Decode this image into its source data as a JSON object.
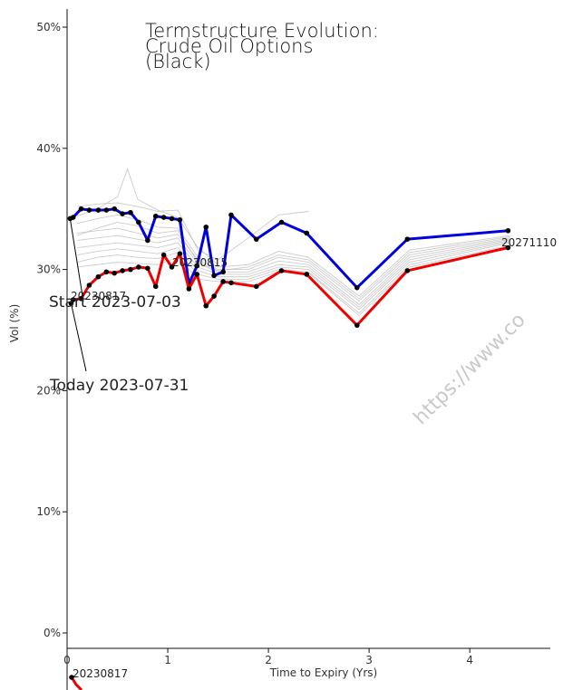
{
  "chart_data": {
    "type": "line",
    "title": [
      "Termstructure Evolution:",
      "Crude Oil Options",
      "(Black)"
    ],
    "xlabel": "Time to Expiry (Yrs)",
    "ylabel": "Vol (%)",
    "xlim": [
      0,
      4.8
    ],
    "ylim": [
      0,
      50
    ],
    "xticks": [
      0,
      1,
      2,
      3,
      4
    ],
    "yticks": [
      0,
      10,
      20,
      30,
      40,
      50
    ],
    "ytick_labels": [
      "0%",
      "10%",
      "20%",
      "30%",
      "40%",
      "50%"
    ],
    "grid": false,
    "series": [
      {
        "role": "start",
        "color": "#0000dd",
        "x": [
          0.03,
          0.06,
          0.14,
          0.22,
          0.31,
          0.39,
          0.47,
          0.55,
          0.63,
          0.71,
          0.8,
          0.88,
          0.96,
          1.04,
          1.12,
          1.21,
          1.29,
          1.38,
          1.46,
          1.55,
          1.63,
          1.88,
          2.13,
          2.38,
          2.88,
          3.38,
          4.38
        ],
        "y": [
          34.2,
          34.3,
          35.0,
          34.9,
          34.9,
          34.9,
          35.0,
          34.6,
          34.7,
          33.9,
          32.4,
          34.4,
          34.3,
          34.2,
          34.1,
          28.8,
          30.3,
          33.5,
          29.5,
          29.8,
          34.5,
          32.5,
          33.9,
          33.0,
          28.5,
          32.5,
          33.2
        ]
      },
      {
        "role": "today",
        "color": "#ee0000",
        "x": [
          0.04,
          0.06,
          0.14,
          0.22,
          0.31,
          0.39,
          0.47,
          0.55,
          0.63,
          0.71,
          0.8,
          0.88,
          0.96,
          1.04,
          1.12,
          1.21,
          1.29,
          1.38,
          1.46,
          1.55,
          1.63,
          1.88,
          2.13,
          2.38,
          2.88,
          3.38,
          4.38
        ],
        "y": [
          27.2,
          27.5,
          27.6,
          28.7,
          29.4,
          29.8,
          29.7,
          29.9,
          30.0,
          30.2,
          30.1,
          28.6,
          31.2,
          30.2,
          31.3,
          28.4,
          29.6,
          27.0,
          27.8,
          29.0,
          28.9,
          28.6,
          29.9,
          29.6,
          25.4,
          29.9,
          31.8
        ]
      }
    ],
    "history_color": "#bbbbbb",
    "history_series": [
      {
        "x": [
          0.1,
          0.3,
          0.5,
          0.7,
          0.9,
          1.1,
          1.3,
          1.5,
          1.8,
          2.1,
          2.4,
          2.9,
          3.4,
          4.4
        ],
        "y": [
          33.8,
          34.2,
          34.5,
          34.1,
          33.5,
          33.4,
          31.0,
          30.2,
          30.4,
          31.5,
          31.0,
          27.8,
          31.6,
          32.8
        ]
      },
      {
        "x": [
          0.1,
          0.3,
          0.5,
          0.7,
          0.9,
          1.1,
          1.3,
          1.5,
          1.8,
          2.1,
          2.4,
          2.9,
          3.4,
          4.4
        ],
        "y": [
          33.0,
          33.2,
          33.4,
          33.0,
          32.6,
          32.9,
          30.8,
          30.0,
          30.0,
          31.0,
          30.6,
          27.4,
          31.2,
          32.6
        ]
      },
      {
        "x": [
          0.1,
          0.3,
          0.5,
          0.7,
          0.9,
          1.1,
          1.3,
          1.5,
          1.8,
          2.1,
          2.4,
          2.9,
          3.4,
          4.4
        ],
        "y": [
          32.4,
          32.6,
          32.8,
          32.5,
          32.2,
          32.6,
          30.5,
          29.8,
          29.8,
          30.7,
          30.4,
          27.1,
          31.0,
          32.5
        ]
      },
      {
        "x": [
          0.1,
          0.3,
          0.5,
          0.7,
          0.9,
          1.1,
          1.3,
          1.5,
          1.8,
          2.1,
          2.4,
          2.9,
          3.4,
          4.4
        ],
        "y": [
          31.8,
          32.0,
          32.2,
          32.0,
          31.8,
          32.2,
          30.2,
          29.6,
          29.6,
          30.4,
          30.2,
          26.9,
          30.8,
          32.4
        ]
      },
      {
        "x": [
          0.1,
          0.3,
          0.5,
          0.7,
          0.9,
          1.1,
          1.3,
          1.5,
          1.8,
          2.1,
          2.4,
          2.9,
          3.4,
          4.4
        ],
        "y": [
          31.2,
          31.5,
          31.7,
          31.5,
          31.3,
          31.8,
          29.9,
          29.4,
          29.4,
          30.2,
          30.0,
          26.7,
          30.6,
          32.3
        ]
      },
      {
        "x": [
          0.1,
          0.3,
          0.5,
          0.7,
          0.9,
          1.1,
          1.3,
          1.5,
          1.8,
          2.1,
          2.4,
          2.9,
          3.4,
          4.4
        ],
        "y": [
          30.6,
          31.0,
          31.2,
          31.0,
          30.9,
          31.4,
          29.6,
          29.2,
          29.2,
          30.0,
          29.8,
          26.4,
          30.4,
          32.2
        ]
      },
      {
        "x": [
          0.1,
          0.3,
          0.5,
          0.6,
          0.7,
          0.9,
          1.1,
          1.3,
          1.5
        ],
        "y": [
          34.4,
          35.0,
          36.0,
          38.3,
          35.8,
          34.9,
          34.3,
          31.8,
          30.4
        ]
      },
      {
        "x": [
          0.1,
          0.3,
          0.5,
          0.7,
          0.9,
          1.1,
          1.3,
          1.5,
          1.8,
          2.1,
          2.4
        ],
        "y": [
          35.2,
          35.4,
          35.5,
          35.2,
          34.8,
          34.9,
          31.6,
          30.8,
          32.6,
          34.5,
          34.8
        ]
      },
      {
        "x": [
          0.1,
          0.3,
          0.5,
          0.7,
          0.9,
          1.1,
          1.3,
          1.5,
          1.8,
          2.1,
          2.4,
          2.9,
          3.4,
          4.4
        ],
        "y": [
          30.2,
          30.4,
          30.6,
          30.5,
          30.4,
          31.0,
          29.2,
          29.0,
          29.0,
          29.8,
          29.7,
          26.2,
          30.2,
          32.0
        ]
      },
      {
        "x": [
          0.1,
          0.3,
          0.5,
          0.7,
          0.9,
          1.1,
          1.3,
          1.5,
          1.8,
          2.1,
          2.4,
          2.9,
          3.4,
          4.4
        ],
        "y": [
          32.8,
          33.4,
          33.9,
          33.6,
          33.0,
          33.2,
          30.6,
          29.9,
          30.2,
          31.2,
          30.8,
          27.6,
          31.4,
          32.7
        ]
      }
    ],
    "annotations": {
      "start_label": "Start 2023-07-03",
      "today_label": "Today 2023-07-31",
      "contract_labels": [
        "20230817",
        "20230815",
        "20271110",
        "20230817"
      ]
    }
  },
  "watermark": "https://www.co"
}
